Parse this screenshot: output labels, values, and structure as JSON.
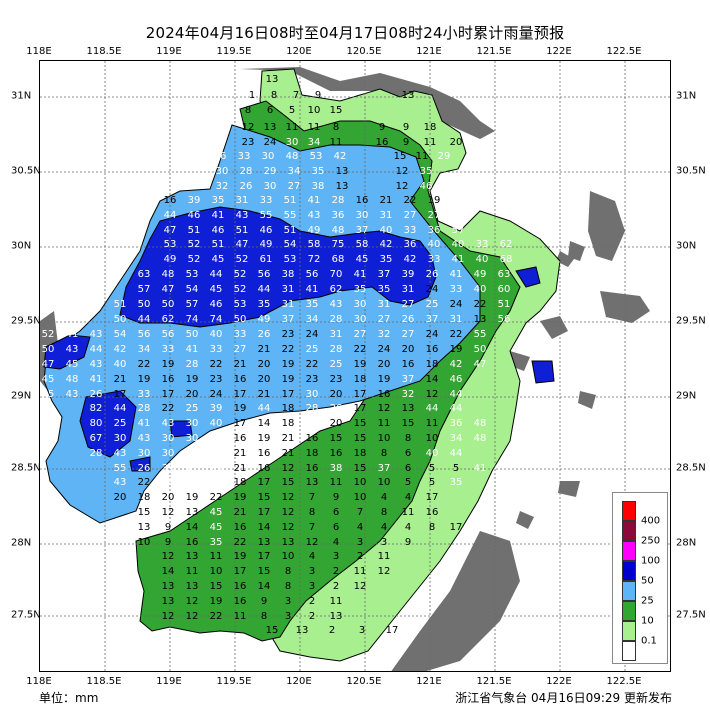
{
  "title": "2024年04月16日08时至04月17日08时24小时累计雨量预报",
  "lon_labels": [
    "118E",
    "118.5E",
    "119E",
    "119.5E",
    "120E",
    "120.5E",
    "121E",
    "121.5E",
    "122E",
    "122.5E"
  ],
  "lat_labels": [
    "31N",
    "30.5N",
    "30N",
    "29.5N",
    "29N",
    "28.5N",
    "28N",
    "27.5N"
  ],
  "unit_label": "单位：mm",
  "issuer": "浙江省气象台 04月16日09:29 更新发布",
  "legend": {
    "items": [
      {
        "label": "400",
        "color": "#ff0000"
      },
      {
        "label": "250",
        "color": "#8b0a3a"
      },
      {
        "label": "100",
        "color": "#ff00ff"
      },
      {
        "label": "50",
        "color": "#0000cc"
      },
      {
        "label": "25",
        "color": "#5fb4f5"
      },
      {
        "label": "10",
        "color": "#33a532"
      },
      {
        "label": "0.1",
        "color": "#a8ef90"
      },
      {
        "label": "",
        "color": "#ffffff"
      }
    ]
  },
  "colors": {
    "background": "#ffffff",
    "land_outside": "#707070",
    "province_border": "#000000",
    "grid": "#6a6a6a"
  },
  "values": [
    "13",
    "1",
    "8",
    "7",
    "9",
    "13",
    "8",
    "6",
    "5",
    "10",
    "15",
    "12",
    "13",
    "11",
    "11",
    "8",
    "9",
    "9",
    "18",
    "23",
    "24",
    "30",
    "34",
    "11",
    "16",
    "9",
    "11",
    "20",
    "26",
    "33",
    "30",
    "48",
    "53",
    "42",
    "15",
    "11",
    "29",
    "30",
    "28",
    "29",
    "34",
    "35",
    "13",
    "12",
    "35",
    "32",
    "26",
    "30",
    "27",
    "38",
    "13",
    "12",
    "46",
    "16",
    "39",
    "35",
    "31",
    "33",
    "51",
    "41",
    "28",
    "16",
    "21",
    "22",
    "19",
    "47",
    "44",
    "46",
    "41",
    "43",
    "55",
    "55",
    "43",
    "36",
    "30",
    "31",
    "27",
    "27",
    "50",
    "47",
    "51",
    "46",
    "51",
    "46",
    "51",
    "49",
    "48",
    "37",
    "40",
    "33",
    "36",
    "57",
    "53",
    "52",
    "51",
    "47",
    "49",
    "54",
    "58",
    "75",
    "58",
    "42",
    "36",
    "40",
    "40",
    "33",
    "62",
    "49",
    "52",
    "45",
    "52",
    "61",
    "53",
    "72",
    "68",
    "45",
    "35",
    "42",
    "33",
    "41",
    "40",
    "68",
    "63",
    "48",
    "53",
    "44",
    "52",
    "56",
    "38",
    "56",
    "70",
    "41",
    "37",
    "39",
    "26",
    "41",
    "49",
    "63",
    "57",
    "47",
    "54",
    "45",
    "52",
    "44",
    "31",
    "41",
    "62",
    "35",
    "35",
    "31",
    "24",
    "33",
    "40",
    "60",
    "51",
    "50",
    "50",
    "57",
    "46",
    "53",
    "35",
    "31",
    "35",
    "43",
    "30",
    "31",
    "27",
    "25",
    "24",
    "22",
    "51",
    "50",
    "44",
    "62",
    "74",
    "74",
    "50",
    "49",
    "37",
    "34",
    "28",
    "30",
    "27",
    "26",
    "37",
    "31",
    "13",
    "56",
    "52",
    "41",
    "43",
    "54",
    "56",
    "56",
    "50",
    "40",
    "33",
    "26",
    "23",
    "24",
    "31",
    "27",
    "32",
    "27",
    "24",
    "22",
    "55",
    "50",
    "43",
    "44",
    "42",
    "34",
    "33",
    "41",
    "33",
    "27",
    "21",
    "22",
    "25",
    "28",
    "22",
    "24",
    "20",
    "16",
    "19",
    "50",
    "47",
    "45",
    "43",
    "40",
    "22",
    "19",
    "28",
    "22",
    "21",
    "20",
    "19",
    "22",
    "25",
    "19",
    "20",
    "16",
    "18",
    "42",
    "47",
    "45",
    "48",
    "41",
    "21",
    "19",
    "16",
    "19",
    "23",
    "16",
    "20",
    "19",
    "23",
    "23",
    "18",
    "19",
    "37",
    "14",
    "46",
    "45",
    "43",
    "26",
    "17",
    "33",
    "17",
    "20",
    "24",
    "17",
    "21",
    "17",
    "30",
    "20",
    "17",
    "16",
    "32",
    "12",
    "44",
    "82",
    "44",
    "28",
    "22",
    "25",
    "39",
    "19",
    "44",
    "18",
    "28",
    "26",
    "17",
    "12",
    "13",
    "44",
    "44",
    "80",
    "25",
    "41",
    "43",
    "30",
    "40",
    "17",
    "14",
    "18",
    "27",
    "20",
    "15",
    "11",
    "15",
    "11",
    "36",
    "48",
    "67",
    "30",
    "43",
    "30",
    "30",
    "27",
    "16",
    "19",
    "21",
    "16",
    "15",
    "15",
    "10",
    "8",
    "10",
    "34",
    "48",
    "28",
    "43",
    "30",
    "30",
    "30",
    "26",
    "21",
    "16",
    "21",
    "18",
    "16",
    "18",
    "8",
    "6",
    "40",
    "44",
    "55",
    "26",
    "35",
    "47",
    "25",
    "21",
    "16",
    "12",
    "16",
    "38",
    "15",
    "37",
    "6",
    "5",
    "5",
    "41",
    "43",
    "22",
    "28",
    "27",
    "26",
    "18",
    "17",
    "15",
    "13",
    "11",
    "10",
    "10",
    "5",
    "5",
    "35",
    "20",
    "18",
    "20",
    "19",
    "22",
    "19",
    "15",
    "12",
    "7",
    "9",
    "10",
    "4",
    "4",
    "17",
    "15",
    "12",
    "13",
    "45",
    "21",
    "17",
    "12",
    "8",
    "6",
    "7",
    "8",
    "11",
    "16",
    "13",
    "9",
    "14",
    "45",
    "16",
    "14",
    "12",
    "7",
    "6",
    "4",
    "4",
    "4",
    "8",
    "17",
    "10",
    "9",
    "16",
    "35",
    "22",
    "13",
    "13",
    "12",
    "4",
    "3",
    "3",
    "9",
    "12",
    "13",
    "11",
    "19",
    "17",
    "10",
    "4",
    "3",
    "2",
    "11",
    "14",
    "11",
    "10",
    "17",
    "15",
    "8",
    "3",
    "2",
    "11",
    "12",
    "13",
    "13",
    "15",
    "16",
    "14",
    "8",
    "3",
    "2",
    "12",
    "13",
    "12",
    "19",
    "16",
    "9",
    "3",
    "2",
    "11",
    "12",
    "12",
    "22",
    "11",
    "8",
    "3",
    "2",
    "13",
    "15",
    "13",
    "2",
    "3",
    "17"
  ]
}
